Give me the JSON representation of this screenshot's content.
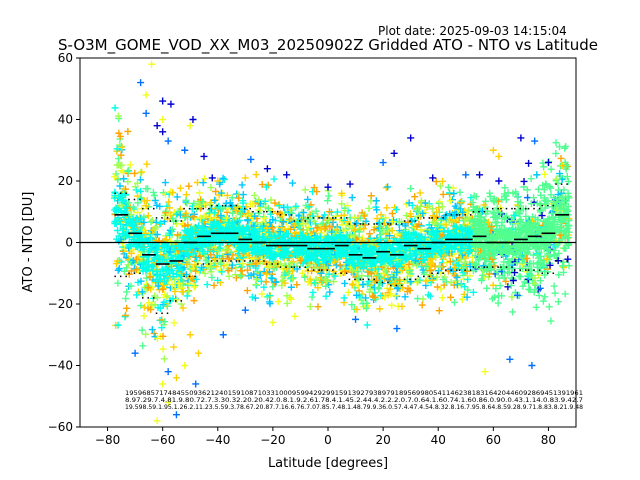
{
  "plot_date": "Plot date: 2025-09-03 14:15:04",
  "chart_data": {
    "type": "scatter",
    "title": "S-O3M_GOME_VOD_XX_M03_20250902Z Gridded ATO - NTO vs Latitude",
    "xlabel": "Latitude [degrees]",
    "ylabel": "ATO - NTO [DU]",
    "xlim": [
      -90,
      90
    ],
    "ylim": [
      -60,
      60
    ],
    "xticks": [
      -80,
      -60,
      -40,
      -20,
      0,
      20,
      40,
      60,
      80
    ],
    "yticks": [
      -60,
      -40,
      -20,
      0,
      20,
      40,
      60
    ],
    "xtick_labels": [
      "−80",
      "−60",
      "−40",
      "−20",
      "0",
      "20",
      "40",
      "60",
      "80"
    ],
    "ytick_labels": [
      "−60",
      "−40",
      "−20",
      "0",
      "20",
      "40",
      "60"
    ],
    "grid": false,
    "point_marker": "+",
    "colors": [
      "#0000d0",
      "#0070ff",
      "#00c8ff",
      "#00ffe8",
      "#50ff90",
      "#a0ff50",
      "#f0ff20",
      "#ffd000",
      "#ffa500"
    ],
    "zero_line": 0,
    "bins": {
      "lat": [
        -75,
        -70,
        -65,
        -60,
        -55,
        -50,
        -45,
        -40,
        -35,
        -30,
        -25,
        -20,
        -15,
        -10,
        -5,
        0,
        5,
        10,
        15,
        20,
        25,
        30,
        35,
        40,
        45,
        50,
        55,
        60,
        65,
        70,
        75,
        80,
        85
      ],
      "mean": [
        9,
        3,
        -4,
        -7,
        -6,
        0,
        2,
        3,
        3,
        1,
        0,
        -1,
        -1,
        -1,
        -2,
        -2,
        -1,
        -4,
        -5,
        -3,
        -4,
        -1,
        -2,
        0,
        1,
        1,
        2,
        0,
        0,
        1,
        2,
        3,
        9
      ],
      "std_upper": [
        16,
        14,
        11,
        8,
        7,
        11,
        11,
        12,
        12,
        11,
        10,
        10,
        9,
        7,
        8,
        8,
        8,
        6,
        6,
        6,
        6,
        7,
        8,
        8,
        9,
        9,
        10,
        11,
        11,
        11,
        11,
        12,
        19
      ],
      "std_lower": [
        -11,
        -10,
        -18,
        -23,
        -19,
        -11,
        -7,
        -6,
        -6,
        -6,
        -6,
        -7,
        -8,
        -8,
        -9,
        -9,
        -10,
        -12,
        -12,
        -13,
        -14,
        -12,
        -11,
        -10,
        -9,
        -9,
        -8,
        -8,
        -8,
        -9,
        -9,
        -10,
        -6
      ]
    },
    "bin_stats_text": {
      "counts": "19596857174845509362124015910871033100095994292991591392793897918956998054114623818316420446092869451391961",
      "row2": "8.97.29.7.4.81.9.80.72.7.3.30.32.20.20.42.0.8.1.9.2.61.78.4.1.45.2.44.4.2.2.2.0.7.0.64.1.60.74.1.60.86.0.90.0.43.1.14.0.83.9.42.7",
      "row3": "19.598.59.1.95.1.26.2.11.23.5.59.3.78.67.20.87.7.16.6.76.7.07.85.7.48.1.48.79.9.36.0.57.4.47.4.54.8.32.8.16.7.95.8.64.8.59.28.9.71.8.83.8.21.9.48"
    }
  }
}
